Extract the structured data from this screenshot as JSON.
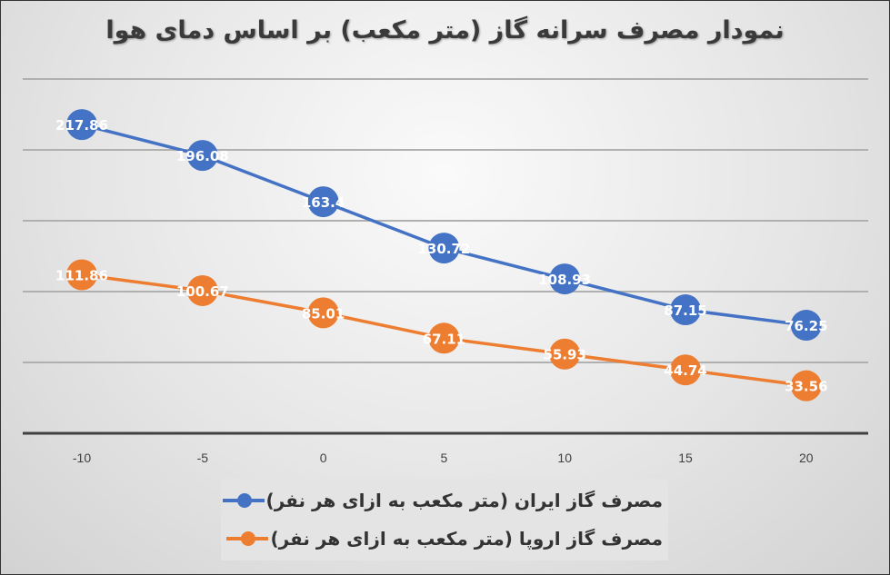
{
  "chart_data": {
    "type": "line",
    "title": "نمودار مصرف سرانه گاز (متر مکعب) بر اساس دمای هوا",
    "xlabel": "",
    "ylabel": "",
    "categories": [
      "-10",
      "-5",
      "0",
      "5",
      "10",
      "15",
      "20"
    ],
    "x": [
      -10,
      -5,
      0,
      5,
      10,
      15,
      20
    ],
    "series": [
      {
        "name": "مصرف گاز ایران (متر مکعب به ازای هر نفر)",
        "color": "#4472C4",
        "values": [
          217.86,
          196.08,
          163.4,
          130.72,
          108.93,
          87.15,
          76.25
        ],
        "labels": [
          "217.86",
          "196.08",
          "163.4",
          "130.72",
          "108.93",
          "87.15",
          "76.25"
        ]
      },
      {
        "name": "مصرف گاز اروپا (متر مکعب به ازای هر نفر)",
        "color": "#ED7D31",
        "values": [
          111.86,
          100.67,
          85.01,
          67.11,
          55.93,
          44.74,
          33.56
        ],
        "labels": [
          "111.86",
          "100.67",
          "85.01",
          "67.11",
          "55.93",
          "44.74",
          "33.56"
        ]
      }
    ],
    "ylim": [
      0,
      250
    ],
    "y_gridlines": [
      50,
      100,
      150,
      200,
      250
    ],
    "y_axis_labels_visible": false,
    "grid": true,
    "legend_position": "bottom",
    "data_labels": true
  },
  "legend": {
    "items": [
      {
        "label": "مصرف گاز ایران (متر مکعب به ازای هر نفر)",
        "color": "#4472C4"
      },
      {
        "label": "مصرف گاز اروپا (متر مکعب به ازای هر نفر)",
        "color": "#ED7D31"
      }
    ]
  }
}
